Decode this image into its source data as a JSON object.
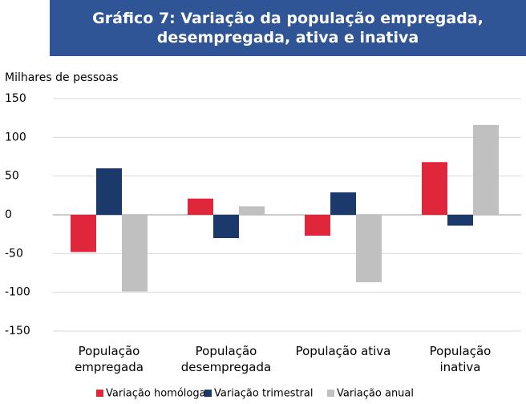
{
  "chart_data": {
    "type": "bar",
    "title": "Gráfico 7: Variação da população empregada, desempregada, ativa e inativa",
    "y_label": "Milhares de pessoas",
    "categories": [
      "População empregada",
      "População desempregada",
      "População ativa",
      "População inativa"
    ],
    "series": [
      {
        "name": "Variação homóloga",
        "color": "#e0263b",
        "values": [
          -48,
          21,
          -27,
          68
        ]
      },
      {
        "name": "Variação trimestral",
        "color": "#1b3a6b",
        "values": [
          60,
          -30,
          29,
          -14
        ]
      },
      {
        "name": "Variação anual",
        "color": "#c0c0c0",
        "values": [
          -99,
          11,
          -87,
          116
        ]
      }
    ],
    "ylim": [
      -150,
      150
    ],
    "yticks": [
      -150,
      -100,
      -50,
      0,
      50,
      100,
      150
    ],
    "grid": true
  }
}
